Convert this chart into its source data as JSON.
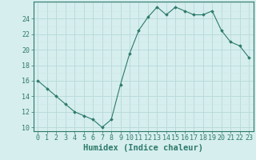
{
  "xlabel": "Humidex (Indice chaleur)",
  "x": [
    0,
    1,
    2,
    3,
    4,
    5,
    6,
    7,
    8,
    9,
    10,
    11,
    12,
    13,
    14,
    15,
    16,
    17,
    18,
    19,
    20,
    21,
    22,
    23
  ],
  "y": [
    16,
    15,
    14,
    13,
    12,
    11.5,
    11,
    10,
    11,
    15.5,
    19.5,
    22.5,
    24.2,
    25.5,
    24.5,
    25.5,
    25,
    24.5,
    24.5,
    25,
    22.5,
    21,
    20.5,
    19
  ],
  "line_color": "#2d7a6a",
  "marker": "D",
  "marker_size": 1.8,
  "bg_color": "#d6eeee",
  "grid_color_major": "#b8d8d8",
  "grid_color_minor": "#cce6e6",
  "tick_color": "#2d7a6a",
  "ylim": [
    9.5,
    26.2
  ],
  "yticks": [
    10,
    12,
    14,
    16,
    18,
    20,
    22,
    24
  ],
  "xlim": [
    -0.5,
    23.5
  ],
  "xticks": [
    0,
    1,
    2,
    3,
    4,
    5,
    6,
    7,
    8,
    9,
    10,
    11,
    12,
    13,
    14,
    15,
    16,
    17,
    18,
    19,
    20,
    21,
    22,
    23
  ],
  "xtick_labels": [
    "0",
    "1",
    "2",
    "3",
    "4",
    "5",
    "6",
    "7",
    "8",
    "9",
    "10",
    "11",
    "12",
    "13",
    "14",
    "15",
    "16",
    "17",
    "18",
    "19",
    "20",
    "21",
    "22",
    "23"
  ],
  "axis_color": "#2d7a6a",
  "xlabel_fontsize": 7.5,
  "tick_fontsize": 6.0
}
